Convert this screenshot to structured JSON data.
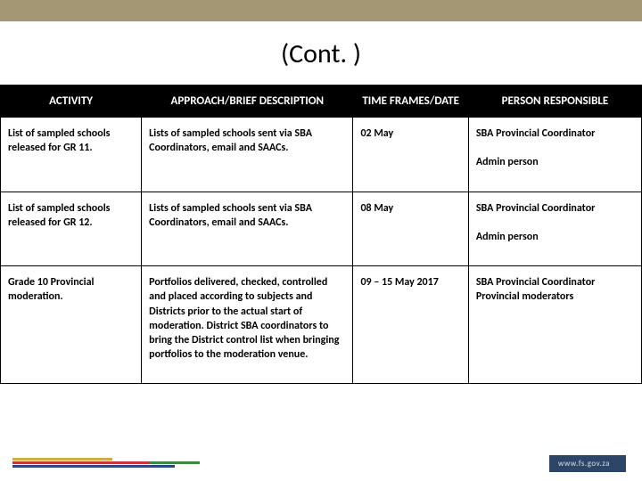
{
  "title": "(Cont. )",
  "table": {
    "headers": {
      "activity": "ACTIVITY",
      "approach": "APPROACH/BRIEF DESCRIPTION",
      "time": "TIME FRAMES/DATE",
      "person": "PERSON RESPONSIBLE"
    },
    "rows": [
      {
        "activity": "List of sampled schools released for GR 11.",
        "approach": "Lists of sampled schools sent via SBA Coordinators, email and SAACs.",
        "time": "02 May",
        "person": "SBA Provincial Coordinator\n\nAdmin person"
      },
      {
        "activity": "List of sampled schools released for GR 12.",
        "approach": "Lists of sampled schools sent via SBA Coordinators, email and SAACs.",
        "time": "08 May",
        "person": "SBA Provincial Coordinator\n\nAdmin person"
      },
      {
        "activity": "Grade 10 Provincial moderation.",
        "approach": "Portfolios delivered, checked, controlled and placed according to subjects and Districts prior to the actual start of moderation. District SBA coordinators to bring the District control list when bringing portfolios to the moderation venue.",
        "time": "09 – 15 May 2017",
        "person": "SBA Provincial Coordinator\nProvincial moderators"
      }
    ]
  },
  "footer": {
    "badge": "www.fs.gov.za"
  },
  "colors": {
    "top_bar": "#a39673",
    "header_bg": "#000000",
    "header_text": "#ffffff",
    "body_text": "#000000",
    "badge_bg": "#2d4668",
    "badge_text": "#d8dde6"
  }
}
